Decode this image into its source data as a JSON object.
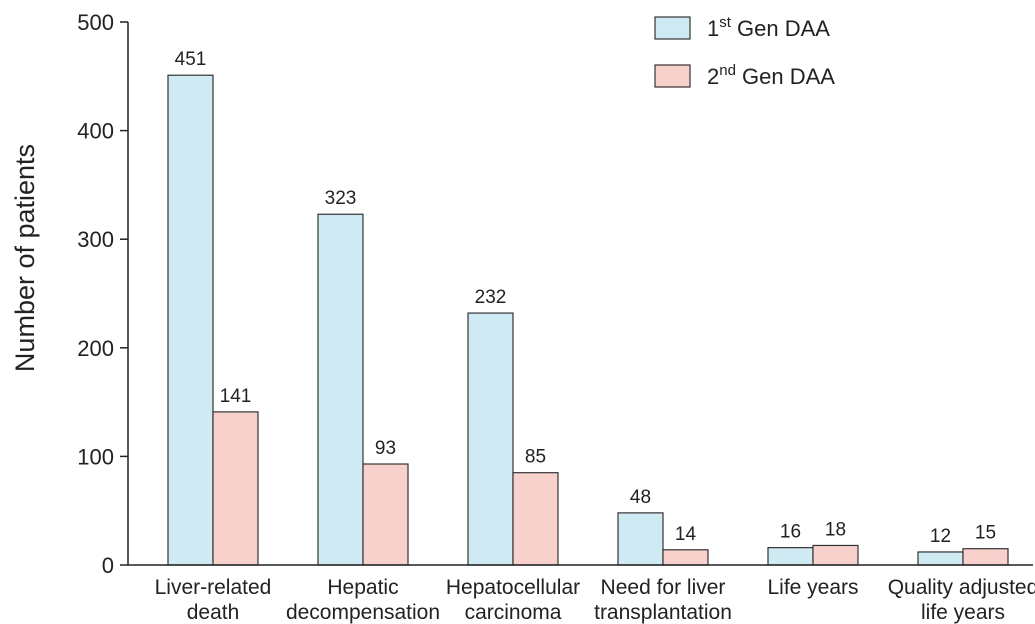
{
  "chart_data": {
    "type": "bar",
    "title": "",
    "ylabel": "Number of patients",
    "xlabel": "",
    "ylim": [
      0,
      500
    ],
    "yticks": [
      "0",
      "100",
      "200",
      "300",
      "400",
      "500"
    ],
    "categories": [
      [
        "Liver-related",
        "death"
      ],
      [
        "Hepatic",
        "decompensation"
      ],
      [
        "Hepatocellular",
        "carcinoma"
      ],
      [
        "Need for liver",
        "transplantation"
      ],
      [
        "Life years",
        ""
      ],
      [
        "Quality adjusted",
        "life years"
      ]
    ],
    "series": [
      {
        "name": "1st Gen DAA",
        "legend_base": "1",
        "legend_sup": "st",
        "legend_rest": " Gen DAA",
        "color": "#cfeaf2",
        "values": [
          451,
          323,
          232,
          48,
          16,
          12
        ]
      },
      {
        "name": "2nd Gen DAA",
        "legend_base": "2",
        "legend_sup": "nd",
        "legend_rest": " Gen DAA",
        "color": "#f8d0cc",
        "values": [
          141,
          93,
          85,
          14,
          18,
          15
        ]
      }
    ],
    "legend_position": "top-right",
    "grid": false
  }
}
